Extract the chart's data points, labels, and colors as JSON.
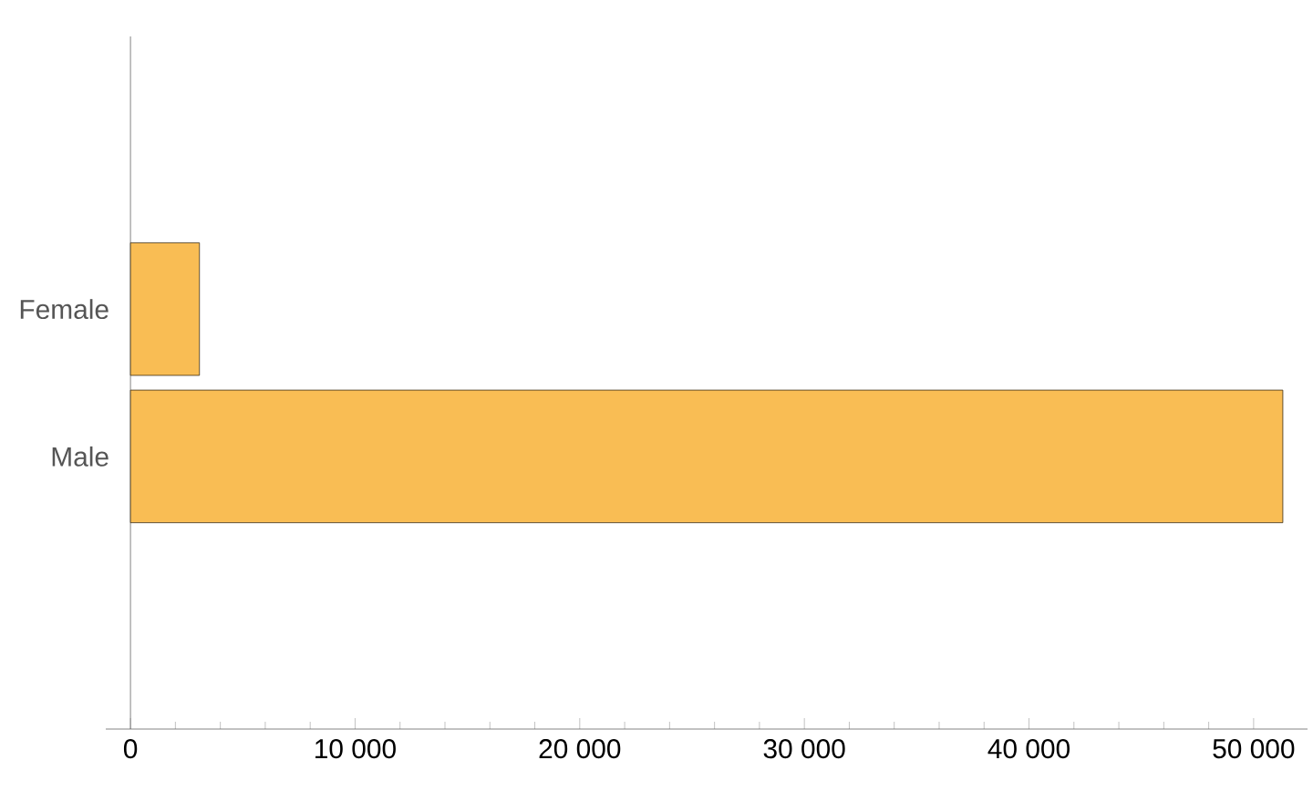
{
  "chart_data": {
    "type": "bar",
    "orientation": "horizontal",
    "categories": [
      "Female",
      "Male"
    ],
    "values": [
      3070,
      51300
    ],
    "color": "#f9bd54",
    "xlim": [
      -1100,
      52400
    ],
    "xticks": [
      0,
      {
        "value": 10000,
        "label": "10 000"
      },
      {
        "value": 20000,
        "label": "20 000"
      },
      {
        "value": 30000,
        "label": "30 000"
      },
      {
        "value": 40000,
        "label": "40 000"
      },
      {
        "value": 50000,
        "label": "50 000"
      }
    ]
  }
}
